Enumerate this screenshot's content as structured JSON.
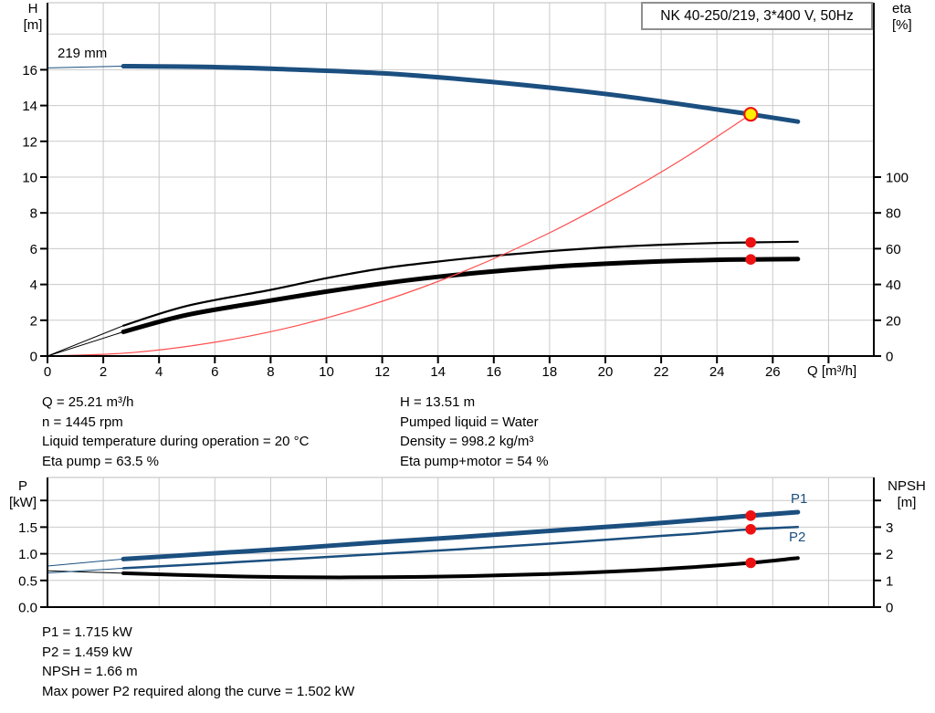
{
  "title_box": {
    "label": "NK 40-250/219, 3*400 V, 50Hz"
  },
  "labels": {
    "h_axis": "H",
    "h_unit": "[m]",
    "eta_axis": "eta",
    "eta_unit": "[%]",
    "q_axis": "Q [m³/h]",
    "impeller": "219 mm",
    "p_axis": "P",
    "p_unit": "[kW]",
    "npsh_axis": "NPSH",
    "npsh_unit": "[m]",
    "p1": "P1",
    "p2": "P2"
  },
  "readouts": {
    "top_left": [
      "Q = 25.21 m³/h",
      "n = 1445 rpm",
      "Liquid temperature during operation = 20 °C",
      "Eta pump = 63.5 %"
    ],
    "top_right": [
      "H = 13.51 m",
      "Pumped liquid = Water",
      "Density = 998.2 kg/m³",
      "Eta pump+motor = 54 %"
    ],
    "bottom": [
      "P1 = 1.715 kW",
      "P2 = 1.459 kW",
      "NPSH = 1.66 m",
      "Max power P2 required along the curve = 1.502 kW"
    ]
  },
  "colors": {
    "blue": "#1b4f7f",
    "black": "#000000",
    "red": "#ff4d4d",
    "dot_red": "#ee1111",
    "dot_yellow": "#ffee00",
    "grid": "#c9c9c9",
    "axis": "#000000",
    "box_border": "#8f8f8f"
  },
  "chart_data": [
    {
      "type": "line",
      "name": "hq-eta-chart",
      "title": "NK 40-250/219, 3*400 V, 50Hz",
      "xlabel": "Q [m³/h]",
      "x_range": [
        0,
        29.6
      ],
      "y_left_label": "H [m]",
      "y_left_range": [
        0,
        19.7
      ],
      "y_right_label": "eta [%]",
      "y_right_range": [
        0,
        197
      ],
      "grid": true,
      "x_ticks": [
        {
          "v": 0,
          "label": "0"
        },
        {
          "v": 2,
          "label": "2"
        },
        {
          "v": 4,
          "label": "4"
        },
        {
          "v": 6,
          "label": "6"
        },
        {
          "v": 8,
          "label": "8"
        },
        {
          "v": 10,
          "label": "10"
        },
        {
          "v": 12,
          "label": "12"
        },
        {
          "v": 14,
          "label": "14"
        },
        {
          "v": 16,
          "label": "16"
        },
        {
          "v": 18,
          "label": "18"
        },
        {
          "v": 20,
          "label": "20"
        },
        {
          "v": 22,
          "label": "22"
        },
        {
          "v": 24,
          "label": "24"
        },
        {
          "v": 26,
          "label": "26"
        },
        {
          "v": 28,
          "label": ""
        }
      ],
      "grid_x": [
        2,
        4,
        6,
        8,
        10,
        12,
        14,
        16,
        18,
        20,
        22,
        24,
        26,
        28
      ],
      "left_ticks": [
        {
          "v": 0,
          "label": "0"
        },
        {
          "v": 2,
          "label": "2"
        },
        {
          "v": 4,
          "label": "4"
        },
        {
          "v": 6,
          "label": "6"
        },
        {
          "v": 8,
          "label": "8"
        },
        {
          "v": 10,
          "label": "10"
        },
        {
          "v": 12,
          "label": "12"
        },
        {
          "v": 14,
          "label": "14"
        },
        {
          "v": 16,
          "label": "16"
        }
      ],
      "grid_y": [
        2,
        4,
        6,
        8,
        10,
        12,
        14,
        16,
        18
      ],
      "right_ticks": [
        {
          "v": 0,
          "label": "0"
        },
        {
          "v": 20,
          "label": "20"
        },
        {
          "v": 40,
          "label": "40"
        },
        {
          "v": 60,
          "label": "60"
        },
        {
          "v": 80,
          "label": "80"
        },
        {
          "v": 100,
          "label": "100"
        }
      ],
      "series": [
        {
          "name": "eta-pump-curve",
          "legend": "Eta pump",
          "axis": "right",
          "color": "black",
          "width": 2.2,
          "thin_until": 2.72,
          "points": [
            [
              0,
              0
            ],
            [
              2.72,
              17
            ],
            [
              5,
              28
            ],
            [
              8,
              37
            ],
            [
              10,
              43.5
            ],
            [
              12,
              49
            ],
            [
              14,
              52.8
            ],
            [
              16,
              56
            ],
            [
              18,
              58.6
            ],
            [
              20,
              60.7
            ],
            [
              22,
              62.2
            ],
            [
              24,
              63.2
            ],
            [
              25.21,
              63.5
            ],
            [
              26.9,
              63.9
            ]
          ]
        },
        {
          "name": "eta-pump-motor-curve",
          "legend": "Eta pump+motor",
          "axis": "right",
          "color": "black",
          "width": 5,
          "thin_until": 2.72,
          "points": [
            [
              0,
              0
            ],
            [
              2.72,
              13.5
            ],
            [
              5,
              23
            ],
            [
              8,
              31
            ],
            [
              10,
              36
            ],
            [
              12,
              40.5
            ],
            [
              14,
              44.3
            ],
            [
              16,
              47.3
            ],
            [
              18,
              49.8
            ],
            [
              20,
              51.6
            ],
            [
              22,
              52.9
            ],
            [
              24,
              53.8
            ],
            [
              25.21,
              54
            ],
            [
              26.9,
              54.2
            ]
          ]
        },
        {
          "name": "affinity-parabola",
          "legend": "Duty parabola",
          "axis": "left",
          "color": "red",
          "width": 1.2,
          "points": [
            [
              0,
              0
            ],
            [
              3,
              0.19
            ],
            [
              6,
              0.77
            ],
            [
              9,
              1.72
            ],
            [
              12,
              3.06
            ],
            [
              15,
              4.78
            ],
            [
              18,
              6.89
            ],
            [
              21,
              9.38
            ],
            [
              23,
              11.24
            ],
            [
              25.21,
              13.51
            ]
          ]
        },
        {
          "name": "head-curve",
          "legend": "219 mm",
          "axis": "left",
          "color": "blue",
          "width": 5,
          "thin_until": 2.72,
          "points": [
            [
              0,
              16.1
            ],
            [
              2.72,
              16.2
            ],
            [
              6,
              16.15
            ],
            [
              9,
              16.0
            ],
            [
              12,
              15.8
            ],
            [
              15,
              15.45
            ],
            [
              18,
              15.0
            ],
            [
              21,
              14.45
            ],
            [
              24,
              13.78
            ],
            [
              25.21,
              13.51
            ],
            [
              26.9,
              13.1
            ]
          ]
        }
      ],
      "markers": [
        {
          "name": "eta-pump-duty-dot",
          "q": 25.21,
          "v": 63.5,
          "axis": "right",
          "kind": "dot"
        },
        {
          "name": "eta-pump-motor-duty-dot",
          "q": 25.21,
          "v": 54,
          "axis": "right",
          "kind": "dot"
        },
        {
          "name": "duty-point",
          "q": 25.21,
          "v": 13.51,
          "axis": "left",
          "kind": "duty"
        }
      ]
    },
    {
      "type": "line",
      "name": "power-npsh-chart",
      "xlabel": "",
      "x_range": [
        0,
        29.6
      ],
      "y_left_label": "P [kW]",
      "y_left_range": [
        0,
        2.43
      ],
      "y_right_label": "NPSH [m]",
      "y_right_range": [
        0,
        4.86
      ],
      "grid": true,
      "x_ticks": [],
      "grid_x": [
        2,
        4,
        6,
        8,
        10,
        12,
        14,
        16,
        18,
        20,
        22,
        24,
        26,
        28
      ],
      "left_ticks": [
        {
          "v": 0,
          "label": "0.0"
        },
        {
          "v": 0.5,
          "label": "0.5"
        },
        {
          "v": 1,
          "label": "1.0"
        },
        {
          "v": 1.5,
          "label": "1.5"
        },
        {
          "v": 2,
          "label": ""
        }
      ],
      "grid_y": [
        0.5,
        1,
        1.5,
        2
      ],
      "right_ticks": [
        {
          "v": 0,
          "label": "0"
        },
        {
          "v": 1,
          "label": "1"
        },
        {
          "v": 2,
          "label": "2"
        },
        {
          "v": 3,
          "label": "3"
        },
        {
          "v": 4,
          "label": ""
        }
      ],
      "series": [
        {
          "name": "npsh-curve",
          "legend": "NPSH",
          "axis": "right",
          "color": "black",
          "width": 4,
          "thin_until": 2.72,
          "points": [
            [
              0,
              1.36
            ],
            [
              2.72,
              1.27
            ],
            [
              6,
              1.17
            ],
            [
              9,
              1.12
            ],
            [
              12,
              1.12
            ],
            [
              15,
              1.16
            ],
            [
              18,
              1.24
            ],
            [
              21,
              1.37
            ],
            [
              23,
              1.49
            ],
            [
              25.21,
              1.66
            ],
            [
              26.9,
              1.84
            ]
          ]
        },
        {
          "name": "p2-curve",
          "legend": "P2",
          "axis": "left",
          "color": "blue",
          "width": 2.5,
          "thin_until": 2.72,
          "points": [
            [
              0,
              0.64
            ],
            [
              2.72,
              0.73
            ],
            [
              6,
              0.82
            ],
            [
              9,
              0.91
            ],
            [
              12,
              1.0
            ],
            [
              15,
              1.09
            ],
            [
              18,
              1.19
            ],
            [
              21,
              1.3
            ],
            [
              23,
              1.37
            ],
            [
              25.21,
              1.459
            ],
            [
              26.9,
              1.502
            ]
          ]
        },
        {
          "name": "p1-curve",
          "legend": "P1",
          "axis": "left",
          "color": "blue",
          "width": 5,
          "thin_until": 2.72,
          "points": [
            [
              0,
              0.77
            ],
            [
              2.72,
              0.9
            ],
            [
              6,
              1.01
            ],
            [
              9,
              1.11
            ],
            [
              12,
              1.22
            ],
            [
              15,
              1.32
            ],
            [
              18,
              1.43
            ],
            [
              21,
              1.54
            ],
            [
              23,
              1.62
            ],
            [
              25.21,
              1.715
            ],
            [
              26.9,
              1.78
            ]
          ]
        }
      ],
      "markers": [
        {
          "name": "p1-duty-dot",
          "q": 25.21,
          "v": 1.715,
          "axis": "left",
          "kind": "dot"
        },
        {
          "name": "p2-duty-dot",
          "q": 25.21,
          "v": 1.459,
          "axis": "left",
          "kind": "dot"
        },
        {
          "name": "npsh-duty-dot",
          "q": 25.21,
          "v": 1.66,
          "axis": "right",
          "kind": "dot"
        }
      ]
    }
  ]
}
